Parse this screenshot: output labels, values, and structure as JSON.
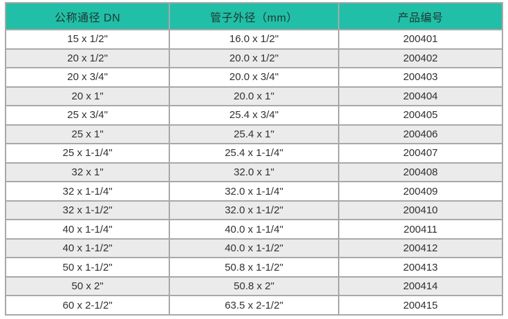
{
  "table": {
    "columns": [
      {
        "key": "dn",
        "label": "公称通径 DN"
      },
      {
        "key": "od",
        "label": "管子外径（mm）"
      },
      {
        "key": "code",
        "label": "产品编号"
      }
    ],
    "rows": [
      [
        "15 x 1/2\"",
        "16.0 x 1/2\"",
        "200401"
      ],
      [
        "20 x 1/2\"",
        "20.0 x 1/2\"",
        "200402"
      ],
      [
        "20 x 3/4\"",
        "20.0 x 3/4\"",
        "200403"
      ],
      [
        "20 x 1\"",
        "20.0 x 1\"",
        "200404"
      ],
      [
        "25 x 3/4\"",
        "25.4 x 3/4\"",
        "200405"
      ],
      [
        "25 x 1\"",
        "25.4 x 1\"",
        "200406"
      ],
      [
        "25 x 1-1/4\"",
        "25.4 x 1-1/4\"",
        "200407"
      ],
      [
        "32 x 1\"",
        "32.0 x 1\"",
        "200408"
      ],
      [
        "32 x 1-1/4\"",
        "32.0 x 1-1/4\"",
        "200409"
      ],
      [
        "32 x 1-1/2\"",
        "32.0 x 1-1/2\"",
        "200410"
      ],
      [
        "40 x 1-1/4\"",
        "40.0 x 1-1/4\"",
        "200411"
      ],
      [
        "40 x 1-1/2\"",
        "40.0 x 1-1/2\"",
        "200412"
      ],
      [
        "50 x 1-1/2\"",
        "50.8 x 1-1/2\"",
        "200413"
      ],
      [
        "50 x 2\"",
        "50.8 x 2\"",
        "200414"
      ],
      [
        "60 x 2-1/2\"",
        "63.5 x 2-1/2\"",
        "200415"
      ]
    ],
    "colors": {
      "header_background": "#21bfa7",
      "header_text": "#1e3832",
      "row_background": "#ffffff",
      "row_alt_background": "#ebebeb",
      "grid_border": "#a8a8a8",
      "cell_text": "#303030"
    }
  }
}
